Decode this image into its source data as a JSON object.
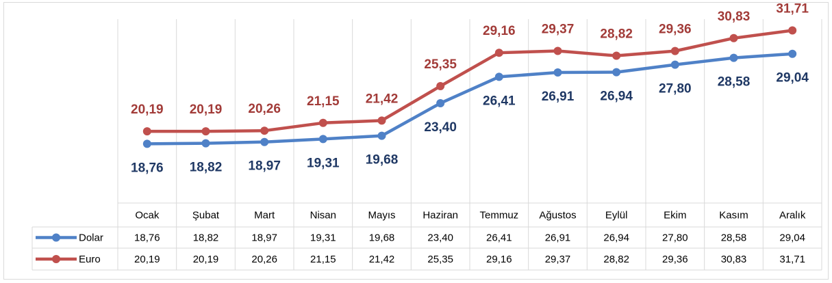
{
  "chart_data": {
    "type": "line",
    "categories": [
      "Ocak",
      "Şubat",
      "Mart",
      "Nisan",
      "Mayıs",
      "Haziran",
      "Temmuz",
      "Ağustos",
      "Eylül",
      "Ekim",
      "Kasım",
      "Aralık"
    ],
    "series": [
      {
        "name": "Dolar",
        "color": "#4f81c7",
        "label_color": "#1f3864",
        "values": [
          18.76,
          18.82,
          18.97,
          19.31,
          19.68,
          23.4,
          26.41,
          26.91,
          26.94,
          27.8,
          28.58,
          29.04
        ],
        "value_labels": [
          "18,76",
          "18,82",
          "18,97",
          "19,31",
          "19,68",
          "23,40",
          "26,41",
          "26,91",
          "26,94",
          "27,80",
          "28,58",
          "29,04"
        ]
      },
      {
        "name": "Euro",
        "color": "#c0504d",
        "label_color": "#a23b38",
        "values": [
          20.19,
          20.19,
          20.26,
          21.15,
          21.42,
          25.35,
          29.16,
          29.37,
          28.82,
          29.36,
          30.83,
          31.71
        ],
        "value_labels": [
          "20,19",
          "20,19",
          "20,26",
          "21,15",
          "21,42",
          "25,35",
          "29,16",
          "29,37",
          "28,82",
          "29,36",
          "30,83",
          "31,71"
        ]
      }
    ],
    "ylim": [
      12,
      33
    ]
  }
}
